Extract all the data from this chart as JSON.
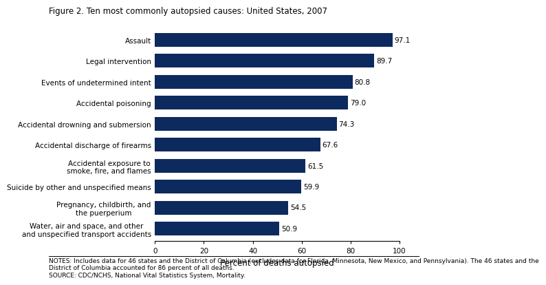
{
  "title": "Figure 2. Ten most commonly autopsied causes: United States, 2007",
  "categories": [
    "Water, air and space, and other\nand unspecified transport accidents",
    "Pregnancy, childbirth, and\nthe puerperium",
    "Suicide by other and unspecified means",
    "Accidental exposure to\nsmoke, fire, and flames",
    "Accidental discharge of firearms",
    "Accidental drowning and submersion",
    "Accidental poisoning",
    "Events of undetermined intent",
    "Legal intervention",
    "Assault"
  ],
  "values": [
    50.9,
    54.5,
    59.9,
    61.5,
    67.6,
    74.3,
    79.0,
    80.8,
    89.7,
    97.1
  ],
  "bar_color": "#0d2a5e",
  "xlabel": "Percent of deaths autopsied",
  "xlim": [
    0,
    100
  ],
  "xticks": [
    0,
    20,
    40,
    60,
    80,
    100
  ],
  "notes_line1": "NOTES: Includes data for 46 states and the District of Columbia (excludes data for Florida, Minnesota, New Mexico, and Pennsylvania). The 46 states and the",
  "notes_line2": "District of Columbia accounted for 86 percent of all deaths.",
  "notes_line3": "SOURCE: CDC/NCHS, National Vital Statistics System, Mortality.",
  "value_label_fontsize": 7.5,
  "category_fontsize": 7.5,
  "xlabel_fontsize": 8.5,
  "title_fontsize": 8.5,
  "notes_fontsize": 6.5
}
